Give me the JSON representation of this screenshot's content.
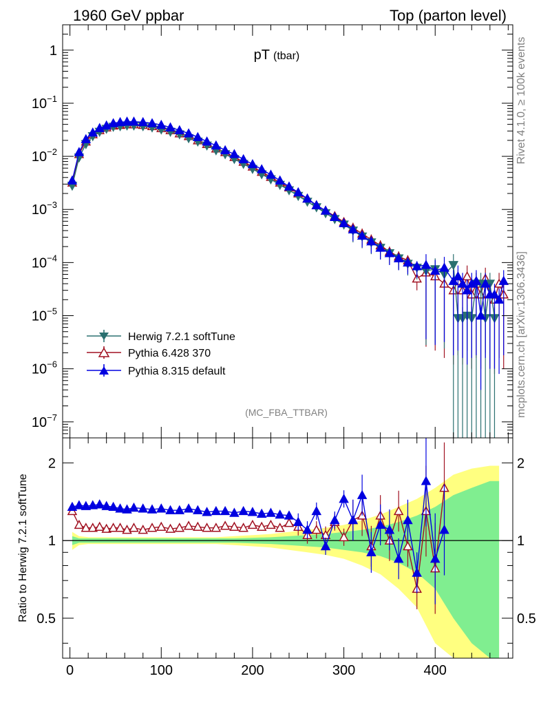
{
  "header": {
    "left": "1960 GeV ppbar",
    "right": "Top (parton level)"
  },
  "plot_title": {
    "main": "pT",
    "sub": "(tbar)"
  },
  "analysis_tag": "(MC_FBA_TTBAR)",
  "side_labels": {
    "rivet": "Rivet 4.1.0, ≥ 100k events",
    "site": "mcplots.cern.ch [arXiv:1306.3436]"
  },
  "colors": {
    "herwig": "#2a7070",
    "pythia6": "#a01020",
    "pythia8": "#0000e0",
    "band_inner": "#80ee90",
    "band_outer": "#ffff80"
  },
  "chart_data": [
    {
      "type": "line",
      "panel": "main",
      "title": "pT (tbar)",
      "xlabel": "",
      "ylabel": "",
      "yscale": "log",
      "xlim": [
        -8,
        485
      ],
      "ylim": [
        5e-08,
        3
      ],
      "ytick_labels": [
        "10^-7",
        "10^-6",
        "10^-5",
        "10^-4",
        "10^-3",
        "10^-2",
        "10^-1",
        "1"
      ],
      "legend": [
        "Herwig 7.2.1 softTune",
        "Pythia 6.428 370",
        "Pythia 8.315 default"
      ],
      "series": [
        {
          "name": "Herwig 7.2.1 softTune",
          "x": [
            2.5,
            10,
            17.5,
            25,
            32.5,
            40,
            47.5,
            55,
            62.5,
            70,
            80,
            90,
            100,
            110,
            120,
            130,
            140,
            150,
            160,
            170,
            180,
            190,
            200,
            210,
            220,
            230,
            240,
            250,
            260,
            270,
            280,
            290,
            300,
            310,
            320,
            330,
            340,
            350,
            360,
            370,
            380,
            390,
            400,
            410,
            420,
            425,
            430,
            435,
            440,
            445,
            450,
            455,
            460,
            465
          ],
          "y": [
            0.0028,
            0.0095,
            0.017,
            0.024,
            0.029,
            0.033,
            0.036,
            0.037,
            0.038,
            0.038,
            0.037,
            0.035,
            0.032,
            0.029,
            0.026,
            0.022,
            0.019,
            0.016,
            0.013,
            0.011,
            0.0089,
            0.0072,
            0.0058,
            0.0046,
            0.0037,
            0.0029,
            0.0023,
            0.0018,
            0.0014,
            0.0011,
            0.00085,
            0.00066,
            0.00052,
            0.0004,
            0.00031,
            0.00024,
            0.00019,
            0.00015,
            0.00012,
            9.5e-05,
            8e-05,
            7e-05,
            7.5e-05,
            6e-05,
            9e-05,
            9e-06,
            9e-06,
            1e-05,
            9e-06,
            4e-05,
            4e-05,
            9e-06,
            4e-05,
            9e-06
          ]
        },
        {
          "name": "Pythia 6.428 370",
          "x": [
            2.5,
            10,
            17.5,
            25,
            32.5,
            40,
            47.5,
            55,
            62.5,
            70,
            80,
            90,
            100,
            110,
            120,
            130,
            140,
            150,
            160,
            170,
            180,
            190,
            200,
            210,
            220,
            230,
            240,
            250,
            260,
            270,
            280,
            290,
            300,
            310,
            320,
            330,
            340,
            350,
            360,
            370,
            380,
            390,
            400,
            410,
            420,
            425,
            430,
            435,
            440,
            445,
            450,
            455,
            460,
            465,
            470,
            475
          ],
          "y": [
            0.0032,
            0.011,
            0.019,
            0.026,
            0.031,
            0.035,
            0.038,
            0.039,
            0.04,
            0.04,
            0.039,
            0.037,
            0.034,
            0.031,
            0.027,
            0.024,
            0.02,
            0.017,
            0.014,
            0.012,
            0.0097,
            0.0079,
            0.0064,
            0.0051,
            0.0041,
            0.0032,
            0.0026,
            0.002,
            0.0016,
            0.0012,
            0.00095,
            0.00075,
            0.00058,
            0.00045,
            0.00035,
            0.00027,
            0.00021,
            0.00016,
            0.00013,
            0.00011,
            5e-05,
            6.5e-05,
            5.5e-05,
            4e-05,
            3e-05,
            4.5e-05,
            3e-05,
            5.5e-05,
            2.5e-05,
            4e-05,
            2.5e-05,
            5e-05,
            2.5e-05,
            2e-05,
            4e-05,
            2.5e-05
          ]
        },
        {
          "name": "Pythia 8.315 default",
          "x": [
            2.5,
            10,
            17.5,
            25,
            32.5,
            40,
            47.5,
            55,
            62.5,
            70,
            80,
            90,
            100,
            110,
            120,
            130,
            140,
            150,
            160,
            170,
            180,
            190,
            200,
            210,
            220,
            230,
            240,
            250,
            260,
            270,
            280,
            290,
            300,
            310,
            320,
            330,
            340,
            350,
            360,
            370,
            380,
            390,
            400,
            410,
            420,
            425,
            430,
            435,
            440,
            445,
            450,
            455,
            460,
            465,
            470,
            475
          ],
          "y": [
            0.0035,
            0.012,
            0.021,
            0.028,
            0.034,
            0.038,
            0.042,
            0.044,
            0.045,
            0.045,
            0.044,
            0.042,
            0.039,
            0.035,
            0.031,
            0.027,
            0.023,
            0.019,
            0.016,
            0.013,
            0.011,
            0.0088,
            0.0071,
            0.0057,
            0.0045,
            0.0035,
            0.0027,
            0.0021,
            0.0016,
            0.0012,
            0.00095,
            0.00072,
            0.00055,
            0.00042,
            0.00032,
            0.00025,
            0.00019,
            0.00015,
            0.00012,
            0.0001,
            8.5e-05,
            9e-05,
            7e-05,
            8e-05,
            4.5e-05,
            5.5e-05,
            4e-05,
            3e-05,
            4e-05,
            4.5e-05,
            1e-05,
            4e-05,
            2.5e-05,
            2.5e-05,
            2e-05,
            4.5e-05
          ]
        }
      ]
    },
    {
      "type": "line",
      "panel": "ratio",
      "ylabel": "Ratio to Herwig 7.2.1 softTune",
      "xlim": [
        -8,
        485
      ],
      "ylim": [
        0.35,
        2.5
      ],
      "yscale": "log",
      "xtick_labels": [
        "0",
        "100",
        "200",
        "300",
        "400"
      ],
      "ytick_labels": [
        "0.5",
        "1",
        "2"
      ],
      "reference_line": 1,
      "band_x": [
        2.5,
        10,
        20,
        40,
        60,
        80,
        100,
        120,
        140,
        160,
        180,
        200,
        220,
        240,
        260,
        280,
        300,
        320,
        340,
        360,
        380,
        400,
        420,
        440,
        460,
        470
      ],
      "band_inner_halfwidth": [
        0.04,
        0.02,
        0.02,
        0.02,
        0.02,
        0.02,
        0.02,
        0.02,
        0.02,
        0.02,
        0.02,
        0.025,
        0.03,
        0.04,
        0.05,
        0.06,
        0.08,
        0.1,
        0.13,
        0.18,
        0.25,
        0.35,
        0.5,
        0.6,
        0.7,
        0.7
      ],
      "band_outer_halfwidth": [
        0.08,
        0.04,
        0.03,
        0.03,
        0.03,
        0.03,
        0.03,
        0.03,
        0.03,
        0.03,
        0.04,
        0.05,
        0.06,
        0.08,
        0.1,
        0.12,
        0.15,
        0.2,
        0.26,
        0.35,
        0.45,
        0.6,
        0.8,
        0.9,
        0.95,
        0.95
      ],
      "series": [
        {
          "name": "Pythia 6.428 370",
          "x": [
            2.5,
            10,
            17.5,
            25,
            32.5,
            40,
            47.5,
            55,
            62.5,
            70,
            80,
            90,
            100,
            110,
            120,
            130,
            140,
            150,
            160,
            170,
            180,
            190,
            200,
            210,
            220,
            230,
            240,
            250,
            260,
            270,
            280,
            290,
            300,
            310,
            320,
            330,
            340,
            350,
            360,
            370,
            380,
            390,
            400,
            410
          ],
          "y": [
            1.3,
            1.15,
            1.12,
            1.12,
            1.13,
            1.11,
            1.12,
            1.12,
            1.1,
            1.12,
            1.1,
            1.12,
            1.13,
            1.11,
            1.12,
            1.14,
            1.13,
            1.12,
            1.12,
            1.14,
            1.13,
            1.12,
            1.15,
            1.13,
            1.15,
            1.12,
            1.17,
            1.13,
            1.05,
            1.1,
            1.05,
            1.18,
            1.03,
            1.2,
            1.25,
            0.95,
            1.25,
            1.0,
            1.3,
            0.95,
            0.65,
            1.3,
            0.78,
            1.6
          ]
        },
        {
          "name": "Pythia 8.315 default",
          "x": [
            2.5,
            10,
            17.5,
            25,
            32.5,
            40,
            47.5,
            55,
            62.5,
            70,
            80,
            90,
            100,
            110,
            120,
            130,
            140,
            150,
            160,
            170,
            180,
            190,
            200,
            210,
            220,
            230,
            240,
            250,
            260,
            270,
            280,
            290,
            300,
            310,
            320,
            330,
            340,
            350,
            360,
            370,
            380,
            390,
            400,
            410
          ],
          "y": [
            1.35,
            1.37,
            1.36,
            1.37,
            1.38,
            1.36,
            1.35,
            1.33,
            1.32,
            1.34,
            1.33,
            1.32,
            1.33,
            1.31,
            1.31,
            1.33,
            1.31,
            1.29,
            1.3,
            1.3,
            1.28,
            1.3,
            1.29,
            1.27,
            1.28,
            1.26,
            1.25,
            1.18,
            1.1,
            1.3,
            0.95,
            1.2,
            1.45,
            1.2,
            1.5,
            0.9,
            1.15,
            1.1,
            0.85,
            1.2,
            0.75,
            1.7,
            0.85,
            1.1
          ]
        }
      ]
    }
  ]
}
